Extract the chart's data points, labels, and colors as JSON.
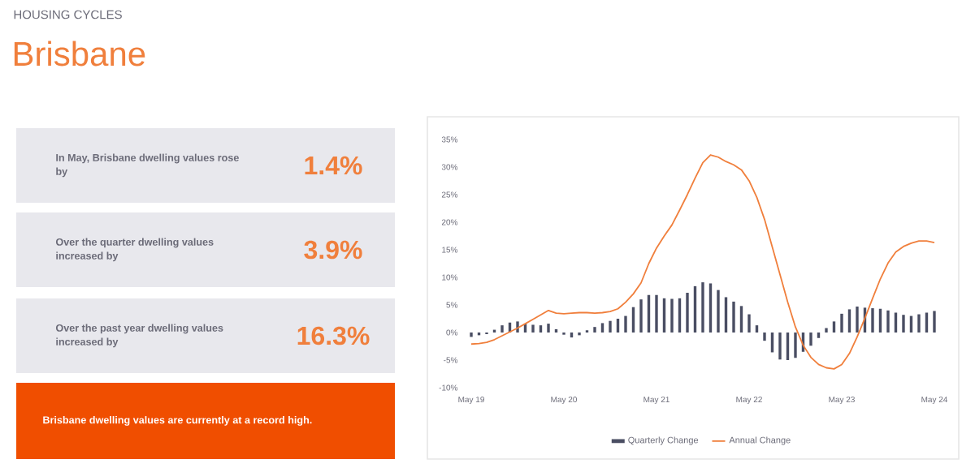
{
  "chart_data": {
    "type": "bar",
    "title": "Brisbane",
    "subtitle": "HOUSING CYCLES",
    "categories": [
      "May 19",
      null,
      null,
      null,
      null,
      null,
      null,
      null,
      null,
      null,
      null,
      null,
      "May 20",
      null,
      null,
      null,
      null,
      null,
      null,
      null,
      null,
      null,
      null,
      null,
      "May 21",
      null,
      null,
      null,
      null,
      null,
      null,
      null,
      null,
      null,
      null,
      null,
      "May 22",
      null,
      null,
      null,
      null,
      null,
      null,
      null,
      null,
      null,
      null,
      null,
      "May 23",
      null,
      null,
      null,
      null,
      null,
      null,
      null,
      null,
      null,
      null,
      null,
      "May 24"
    ],
    "series": [
      {
        "name": "Quarterly Change",
        "color": "#4a4e63",
        "values": [
          -0.8,
          -0.5,
          -0.3,
          0.5,
          1.3,
          1.8,
          2.0,
          1.6,
          1.4,
          1.3,
          1.6,
          0.6,
          -0.4,
          -0.9,
          -0.5,
          0.4,
          1.0,
          1.7,
          2.1,
          2.5,
          3.0,
          4.6,
          6.0,
          6.8,
          6.8,
          6.2,
          6.1,
          6.2,
          7.2,
          8.4,
          9.1,
          8.9,
          7.7,
          6.4,
          5.6,
          4.8,
          3.3,
          1.3,
          -1.5,
          -3.6,
          -4.9,
          -5.0,
          -4.6,
          -3.5,
          -2.4,
          -1.0,
          0.8,
          2.0,
          3.4,
          4.2,
          4.7,
          4.5,
          4.4,
          4.3,
          4.0,
          3.6,
          3.2,
          3.0,
          3.3,
          3.6,
          3.9
        ]
      },
      {
        "name": "Annual Change",
        "type": "line",
        "color": "#f07f3c",
        "values": [
          -2.1,
          -2.0,
          -1.8,
          -1.3,
          -0.6,
          0.1,
          0.8,
          1.6,
          2.4,
          3.2,
          4.0,
          3.5,
          3.4,
          3.5,
          3.6,
          3.6,
          3.5,
          3.6,
          3.8,
          4.3,
          5.5,
          7.0,
          9.0,
          12.5,
          15.3,
          17.5,
          19.5,
          22.2,
          25.0,
          28.0,
          30.8,
          32.2,
          31.8,
          31.0,
          30.4,
          29.5,
          27.5,
          24.5,
          20.5,
          15.5,
          10.5,
          5.5,
          1.0,
          -2.3,
          -4.5,
          -5.8,
          -6.4,
          -6.6,
          -5.8,
          -3.8,
          -0.8,
          2.6,
          6.2,
          9.7,
          12.6,
          14.6,
          15.6,
          16.2,
          16.6,
          16.6,
          16.3
        ]
      }
    ],
    "ylim": [
      -10,
      35
    ],
    "yticks": [
      {
        "value": -10,
        "label": "-10%"
      },
      {
        "value": -5,
        "label": "-5%"
      },
      {
        "value": 0,
        "label": "0%"
      },
      {
        "value": 5,
        "label": "5%"
      },
      {
        "value": 10,
        "label": "10%"
      },
      {
        "value": 15,
        "label": "15%"
      },
      {
        "value": 20,
        "label": "20%"
      },
      {
        "value": 25,
        "label": "25%"
      },
      {
        "value": 30,
        "label": "30%"
      },
      {
        "value": 35,
        "label": "35%"
      }
    ],
    "legend": "bottom",
    "annotations": [
      "In May, Brisbane dwelling values rose by",
      "1.4%",
      "Over the quarter dwelling values increased by",
      "3.9%",
      "Over the past year dwelling values increased by",
      "16.3%",
      "Brisbane dwelling values are currently at a record high."
    ]
  }
}
